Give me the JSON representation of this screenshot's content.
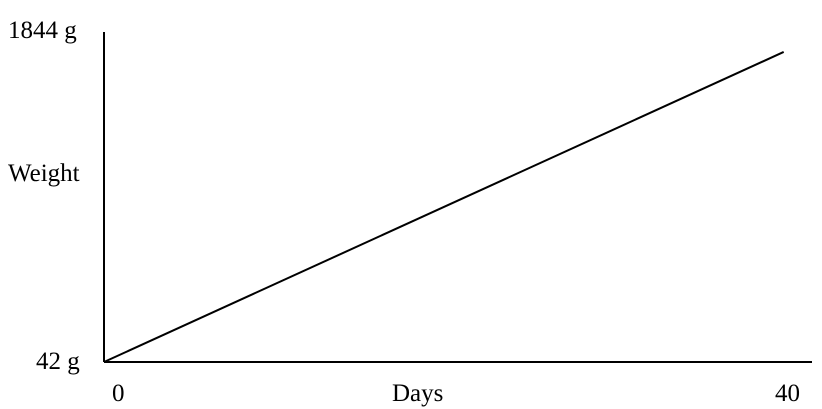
{
  "chart_data": {
    "type": "line",
    "xlabel": "Days",
    "ylabel": "Weight",
    "x_ticks": [
      "0",
      "40"
    ],
    "y_ticks": [
      "42 g",
      "1844 g"
    ],
    "xlim": [
      0,
      40
    ],
    "ylim": [
      42,
      1844
    ],
    "grid": false,
    "series": [
      {
        "x": [
          0,
          38.4
        ],
        "y": [
          42,
          1735
        ]
      }
    ]
  },
  "colors": {
    "line": "#000000",
    "background": "#ffffff"
  }
}
